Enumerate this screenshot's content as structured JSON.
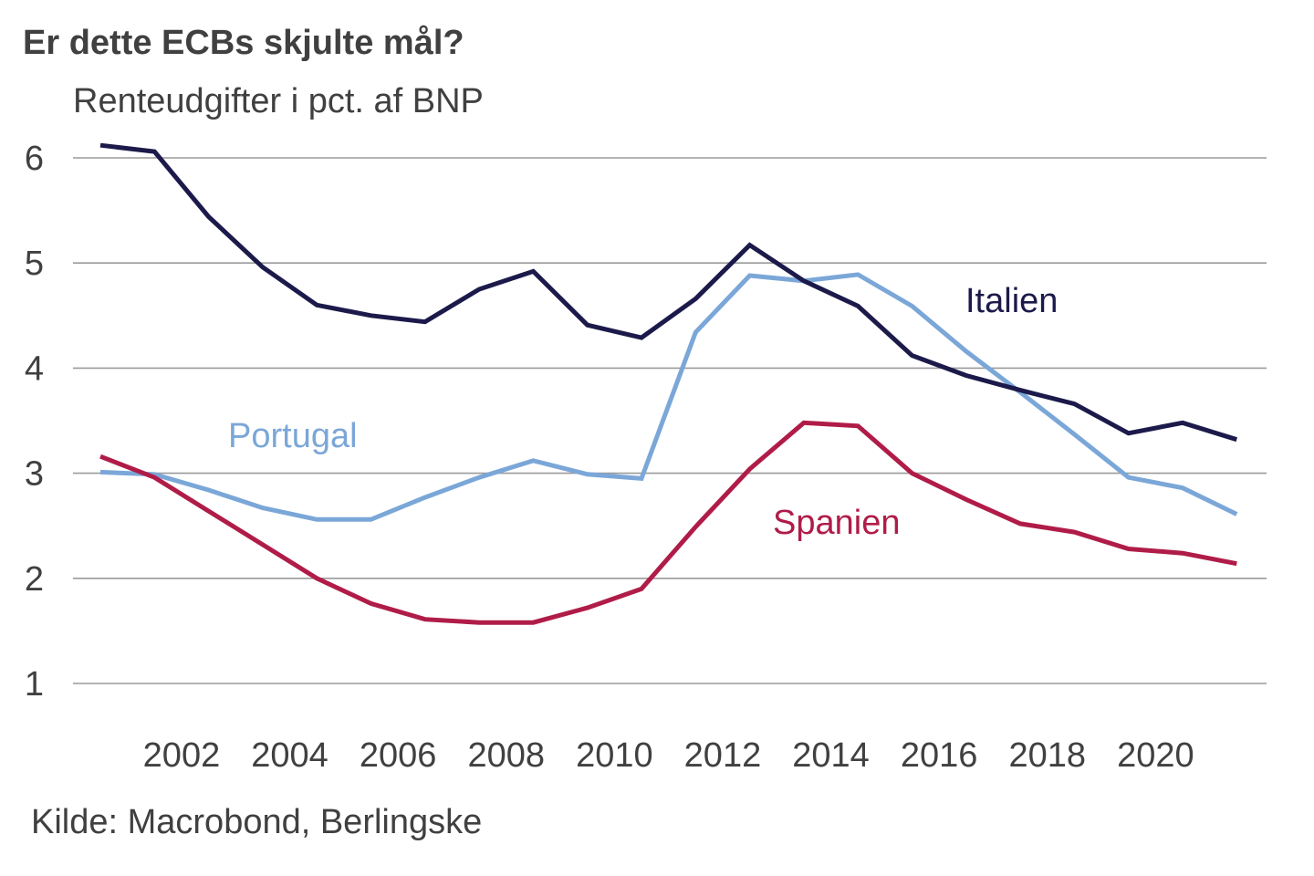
{
  "header": {
    "title": "Er dette ECBs skjulte mål?",
    "subtitle": "Renteudgifter i pct. af BNP"
  },
  "footer": {
    "source": "Kilde: Macrobond, Berlingske"
  },
  "chart_data": {
    "type": "line",
    "title": "Er dette ECBs skjulte mål?",
    "subtitle": "Renteudgifter i pct. af BNP",
    "xlabel": "",
    "ylabel": "Renteudgifter i pct. af BNP",
    "x": [
      2000,
      2001,
      2002,
      2003,
      2004,
      2005,
      2006,
      2007,
      2008,
      2009,
      2010,
      2011,
      2012,
      2013,
      2014,
      2015,
      2016,
      2017,
      2018,
      2019,
      2020,
      2021
    ],
    "xticks": [
      "2002",
      "2004",
      "2006",
      "2008",
      "2010",
      "2012",
      "2014",
      "2016",
      "2018",
      "2020"
    ],
    "xtick_values": [
      2002,
      2004,
      2006,
      2008,
      2010,
      2012,
      2014,
      2016,
      2018,
      2020
    ],
    "yticks": [
      "1",
      "2",
      "3",
      "4",
      "5",
      "6"
    ],
    "ytick_values": [
      1,
      2,
      3,
      4,
      5,
      6
    ],
    "ylim": [
      1,
      6
    ],
    "xlim": [
      2000,
      2022
    ],
    "grid": "horizontal",
    "legend": "inline labels",
    "series": [
      {
        "name": "Italien",
        "color": "#1c1a4a",
        "values": [
          6.12,
          6.06,
          5.44,
          4.96,
          4.6,
          4.5,
          4.44,
          4.75,
          4.92,
          4.41,
          4.29,
          4.66,
          5.17,
          4.83,
          4.59,
          4.12,
          3.93,
          3.79,
          3.66,
          3.38,
          3.48,
          3.32
        ]
      },
      {
        "name": "Portugal",
        "color": "#7ba7d8",
        "values": [
          3.01,
          2.99,
          2.84,
          2.67,
          2.56,
          2.56,
          2.77,
          2.96,
          3.12,
          2.99,
          2.95,
          4.34,
          4.88,
          4.83,
          4.89,
          4.59,
          4.16,
          3.77,
          3.37,
          2.96,
          2.86,
          2.61
        ]
      },
      {
        "name": "Spanien",
        "color": "#b01c48",
        "values": [
          3.16,
          2.96,
          2.64,
          2.32,
          2.0,
          1.76,
          1.61,
          1.58,
          1.58,
          1.72,
          1.9,
          2.49,
          3.04,
          3.48,
          3.45,
          3.0,
          2.75,
          2.52,
          2.44,
          2.28,
          2.24,
          2.14
        ]
      }
    ],
    "annotations": [
      {
        "text": "Italien",
        "series": "Italien",
        "near_x": 2016.5,
        "near_y": 4.8
      },
      {
        "text": "Portugal",
        "series": "Portugal",
        "near_x": 2003.5,
        "near_y": 3.35
      },
      {
        "text": "Spanien",
        "series": "Spanien",
        "near_x": 2012.6,
        "near_y": 2.5
      }
    ]
  }
}
